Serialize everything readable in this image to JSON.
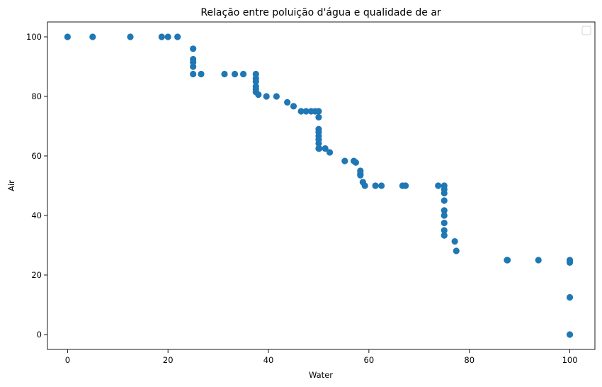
{
  "chart_data": {
    "type": "scatter",
    "title": "Relação entre poluição d'água e qualidade de ar",
    "xlabel": "Water",
    "ylabel": "Air",
    "xlim": [
      -4,
      105
    ],
    "ylim": [
      -5,
      105
    ],
    "xticks": [
      0,
      20,
      40,
      60,
      80,
      100
    ],
    "yticks": [
      0,
      20,
      40,
      60,
      80,
      100
    ],
    "grid": false,
    "legend": {
      "placement": "top-right",
      "entries": []
    },
    "point_color": "#1f77b4",
    "points": [
      [
        0,
        100
      ],
      [
        5,
        100
      ],
      [
        12.5,
        100
      ],
      [
        18.75,
        100
      ],
      [
        20,
        100
      ],
      [
        21.9,
        100
      ],
      [
        25,
        96
      ],
      [
        25,
        92.5
      ],
      [
        25,
        91.5
      ],
      [
        25,
        90
      ],
      [
        25,
        87.5
      ],
      [
        26.6,
        87.5
      ],
      [
        31.25,
        87.5
      ],
      [
        33.3,
        87.5
      ],
      [
        35,
        87.5
      ],
      [
        37.5,
        87.5
      ],
      [
        37.5,
        86
      ],
      [
        37.5,
        85
      ],
      [
        37.5,
        83.3
      ],
      [
        37.5,
        82.5
      ],
      [
        37.5,
        81.5
      ],
      [
        38,
        80.6
      ],
      [
        39.6,
        80
      ],
      [
        41.6,
        80
      ],
      [
        43.75,
        78
      ],
      [
        45,
        76.7
      ],
      [
        46.5,
        75
      ],
      [
        47.5,
        75
      ],
      [
        48.5,
        75
      ],
      [
        49.3,
        75
      ],
      [
        50,
        75
      ],
      [
        50,
        73
      ],
      [
        50,
        69
      ],
      [
        50,
        68
      ],
      [
        50,
        66.7
      ],
      [
        50,
        65.5
      ],
      [
        50,
        64.2
      ],
      [
        50,
        62.5
      ],
      [
        50.1,
        62.5
      ],
      [
        51.3,
        62.5
      ],
      [
        52.2,
        61.2
      ],
      [
        55.2,
        58.3
      ],
      [
        57,
        58.3
      ],
      [
        57.4,
        57.8
      ],
      [
        58.3,
        55
      ],
      [
        58.3,
        54
      ],
      [
        58.3,
        53.5
      ],
      [
        58.8,
        51.2
      ],
      [
        59.2,
        50
      ],
      [
        61.3,
        50
      ],
      [
        62.5,
        50
      ],
      [
        66.7,
        50
      ],
      [
        67.3,
        50
      ],
      [
        73.8,
        50
      ],
      [
        75,
        50
      ],
      [
        75,
        48.8
      ],
      [
        75,
        47.5
      ],
      [
        75,
        45
      ],
      [
        75,
        41.7
      ],
      [
        75,
        40
      ],
      [
        75,
        37.5
      ],
      [
        75,
        35
      ],
      [
        75,
        33.3
      ],
      [
        77.1,
        31.3
      ],
      [
        77.4,
        28.1
      ],
      [
        87.5,
        25
      ],
      [
        87.6,
        25
      ],
      [
        93.75,
        25
      ],
      [
        100,
        25
      ],
      [
        100,
        24.2
      ],
      [
        100,
        12.5
      ],
      [
        100,
        0
      ]
    ]
  }
}
